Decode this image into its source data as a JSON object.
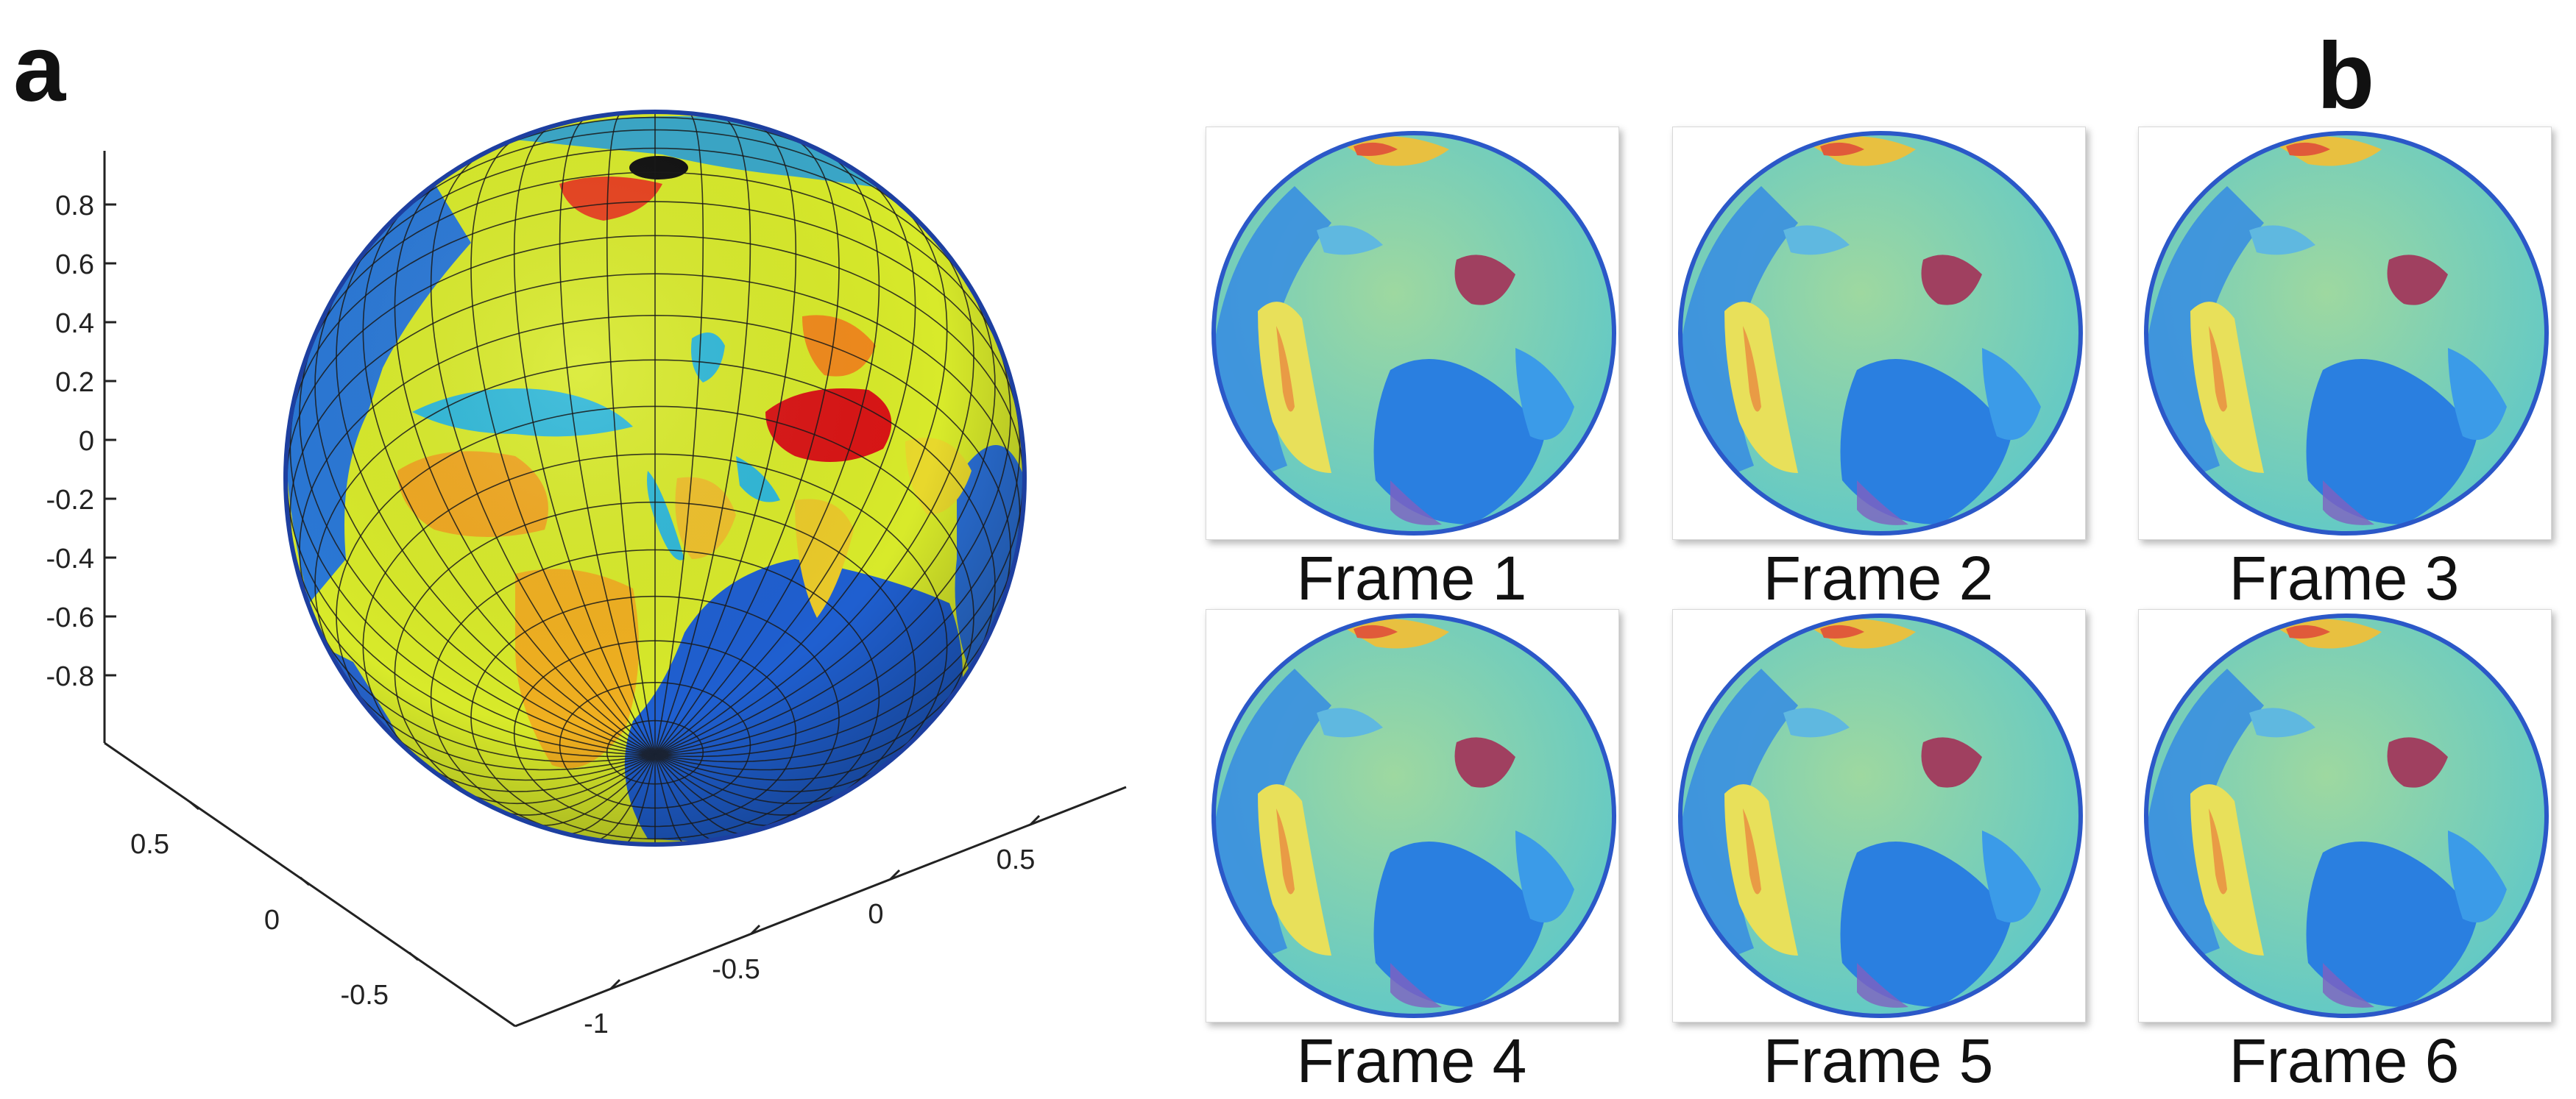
{
  "panel_a": {
    "letter": "a",
    "z_ticks": [
      "0.8",
      "0.6",
      "0.4",
      "0.2",
      "0",
      "-0.2",
      "-0.4",
      "-0.6",
      "-0.8"
    ],
    "x_ticks": [
      "0.5",
      "0",
      "-0.5"
    ],
    "y_ticks": [
      "0.5",
      "0",
      "-0.5",
      "-1"
    ]
  },
  "panel_b": {
    "letter": "b",
    "frames": [
      {
        "label": "Frame 1"
      },
      {
        "label": "Frame 2"
      },
      {
        "label": "Frame 3"
      },
      {
        "label": "Frame 4"
      },
      {
        "label": "Frame 5"
      },
      {
        "label": "Frame 6"
      }
    ]
  }
}
